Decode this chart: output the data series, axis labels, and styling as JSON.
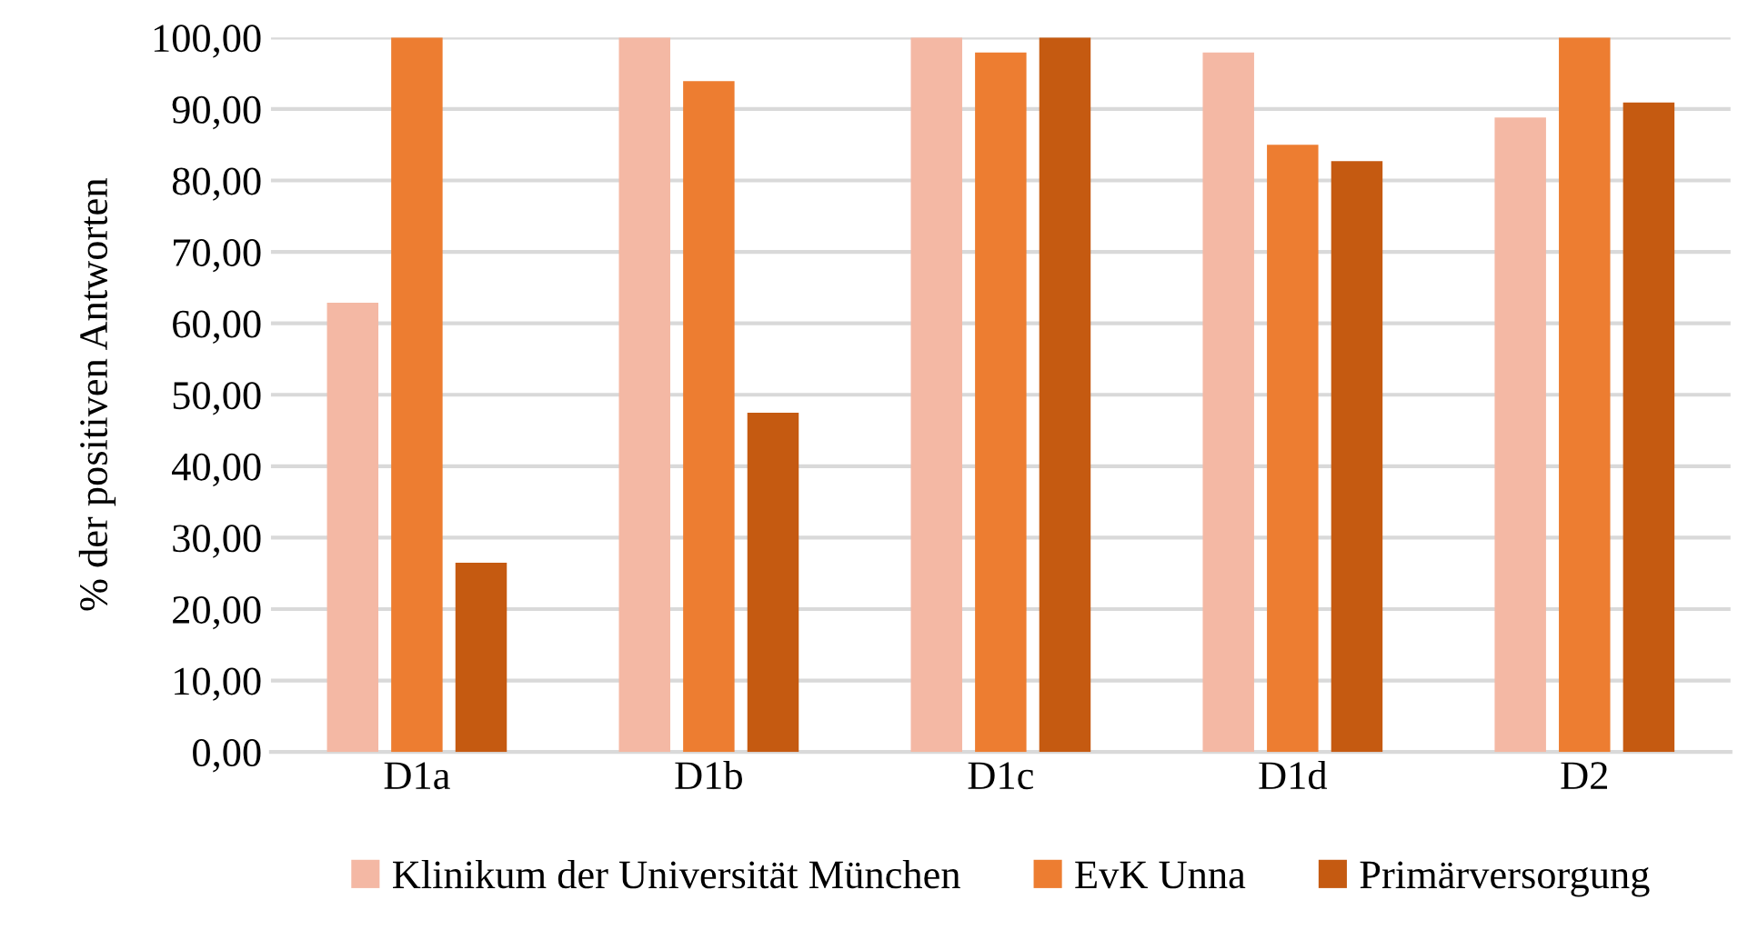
{
  "chart_data": {
    "type": "bar",
    "ylabel": "% der positiven Antworten",
    "categories": [
      "D1a",
      "D1b",
      "D1c",
      "D1d",
      "D2"
    ],
    "series": [
      {
        "name": "Klinikum der Universität München",
        "color": "#f4b8a4",
        "values": [
          62.9,
          100,
          100,
          97.9,
          88.8
        ]
      },
      {
        "name": "EvK Unna",
        "color": "#ed7d31",
        "values": [
          100,
          93.9,
          97.9,
          85.0,
          100
        ]
      },
      {
        "name": "Primärversorgung",
        "color": "#c55a11",
        "values": [
          26.5,
          47.5,
          100,
          82.7,
          90.9
        ]
      }
    ],
    "ylim": [
      0,
      100
    ],
    "yticks": [
      {
        "value": 0,
        "label": "0,00"
      },
      {
        "value": 10,
        "label": "10,00"
      },
      {
        "value": 20,
        "label": "20,00"
      },
      {
        "value": 30,
        "label": "30,00"
      },
      {
        "value": 40,
        "label": "40,00"
      },
      {
        "value": 50,
        "label": "50,00"
      },
      {
        "value": 60,
        "label": "60,00"
      },
      {
        "value": 70,
        "label": "70,00"
      },
      {
        "value": 80,
        "label": "80,00"
      },
      {
        "value": 90,
        "label": "90,00"
      },
      {
        "value": 100,
        "label": "100,00"
      }
    ],
    "grid": "y",
    "legend": "bottom"
  }
}
